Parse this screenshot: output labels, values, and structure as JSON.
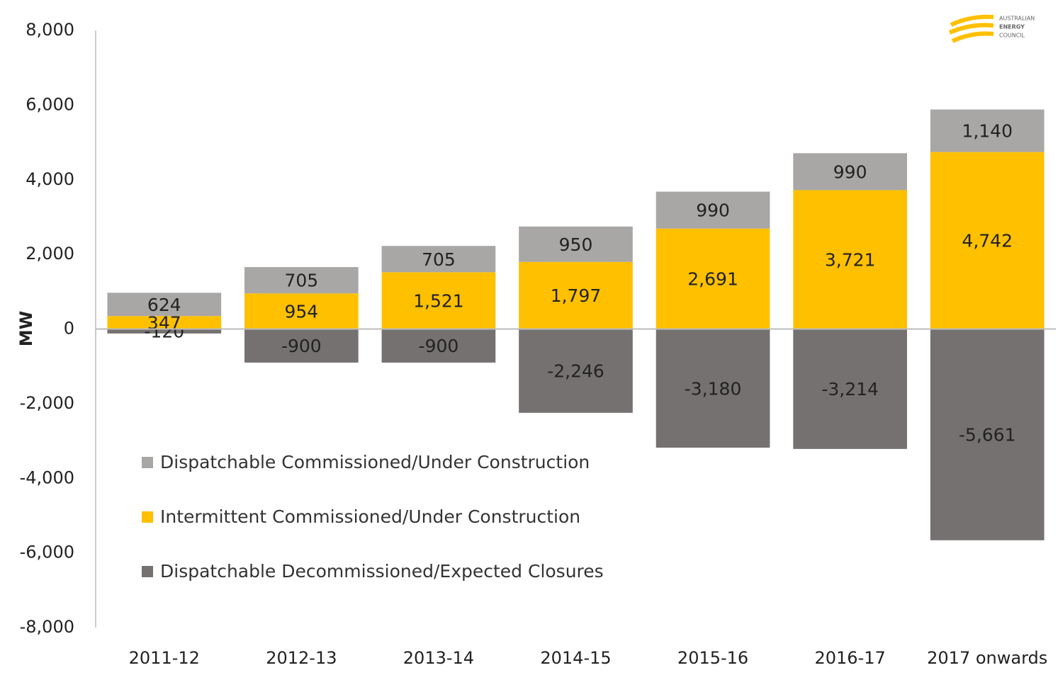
{
  "chart_data": {
    "type": "bar",
    "stacked": true,
    "ylabel": "MW",
    "categories": [
      "2011-12",
      "2012-13",
      "2013-14",
      "2014-15",
      "2015-16",
      "2016-17",
      "2017 onwards"
    ],
    "series": [
      {
        "name": "Dispatchable Commissioned/Under Construction",
        "color": "#a9a6a6",
        "values": [
          624,
          705,
          705,
          950,
          990,
          990,
          1140
        ],
        "value_labels": [
          "624",
          "705",
          "705",
          "950",
          "990",
          "990",
          "1,140"
        ]
      },
      {
        "name": "Intermittent Commissioned/Under Construction",
        "color": "#ffc000",
        "values": [
          347,
          954,
          1521,
          1797,
          2691,
          3721,
          4742
        ],
        "value_labels": [
          "347",
          "954",
          "1,521",
          "1,797",
          "2,691",
          "3,721",
          "4,742"
        ]
      },
      {
        "name": "Dispatchable Decommissioned/Expected Closures",
        "color": "#757171",
        "values": [
          -120,
          -900,
          -900,
          -2246,
          -3180,
          -3214,
          -5661
        ],
        "value_labels": [
          "-120",
          "-900",
          "-900",
          "-2,246",
          "-3,180",
          "-3,214",
          "-5,661"
        ]
      }
    ],
    "ylim": [
      -8000,
      8000
    ],
    "yticks": [
      {
        "value": -8000,
        "label": "-8,000"
      },
      {
        "value": -6000,
        "label": "-6,000"
      },
      {
        "value": -4000,
        "label": "-4,000"
      },
      {
        "value": -2000,
        "label": "-2,000"
      },
      0,
      {
        "value": 2000,
        "label": "2,000"
      },
      {
        "value": 4000,
        "label": "4,000"
      },
      {
        "value": 6000,
        "label": "6,000"
      },
      {
        "value": 8000,
        "label": "8,000"
      }
    ],
    "grid": false,
    "legend_position": "center left",
    "logo": [
      "AUSTRALIAN",
      "ENERGY",
      "COUNCIL"
    ]
  }
}
